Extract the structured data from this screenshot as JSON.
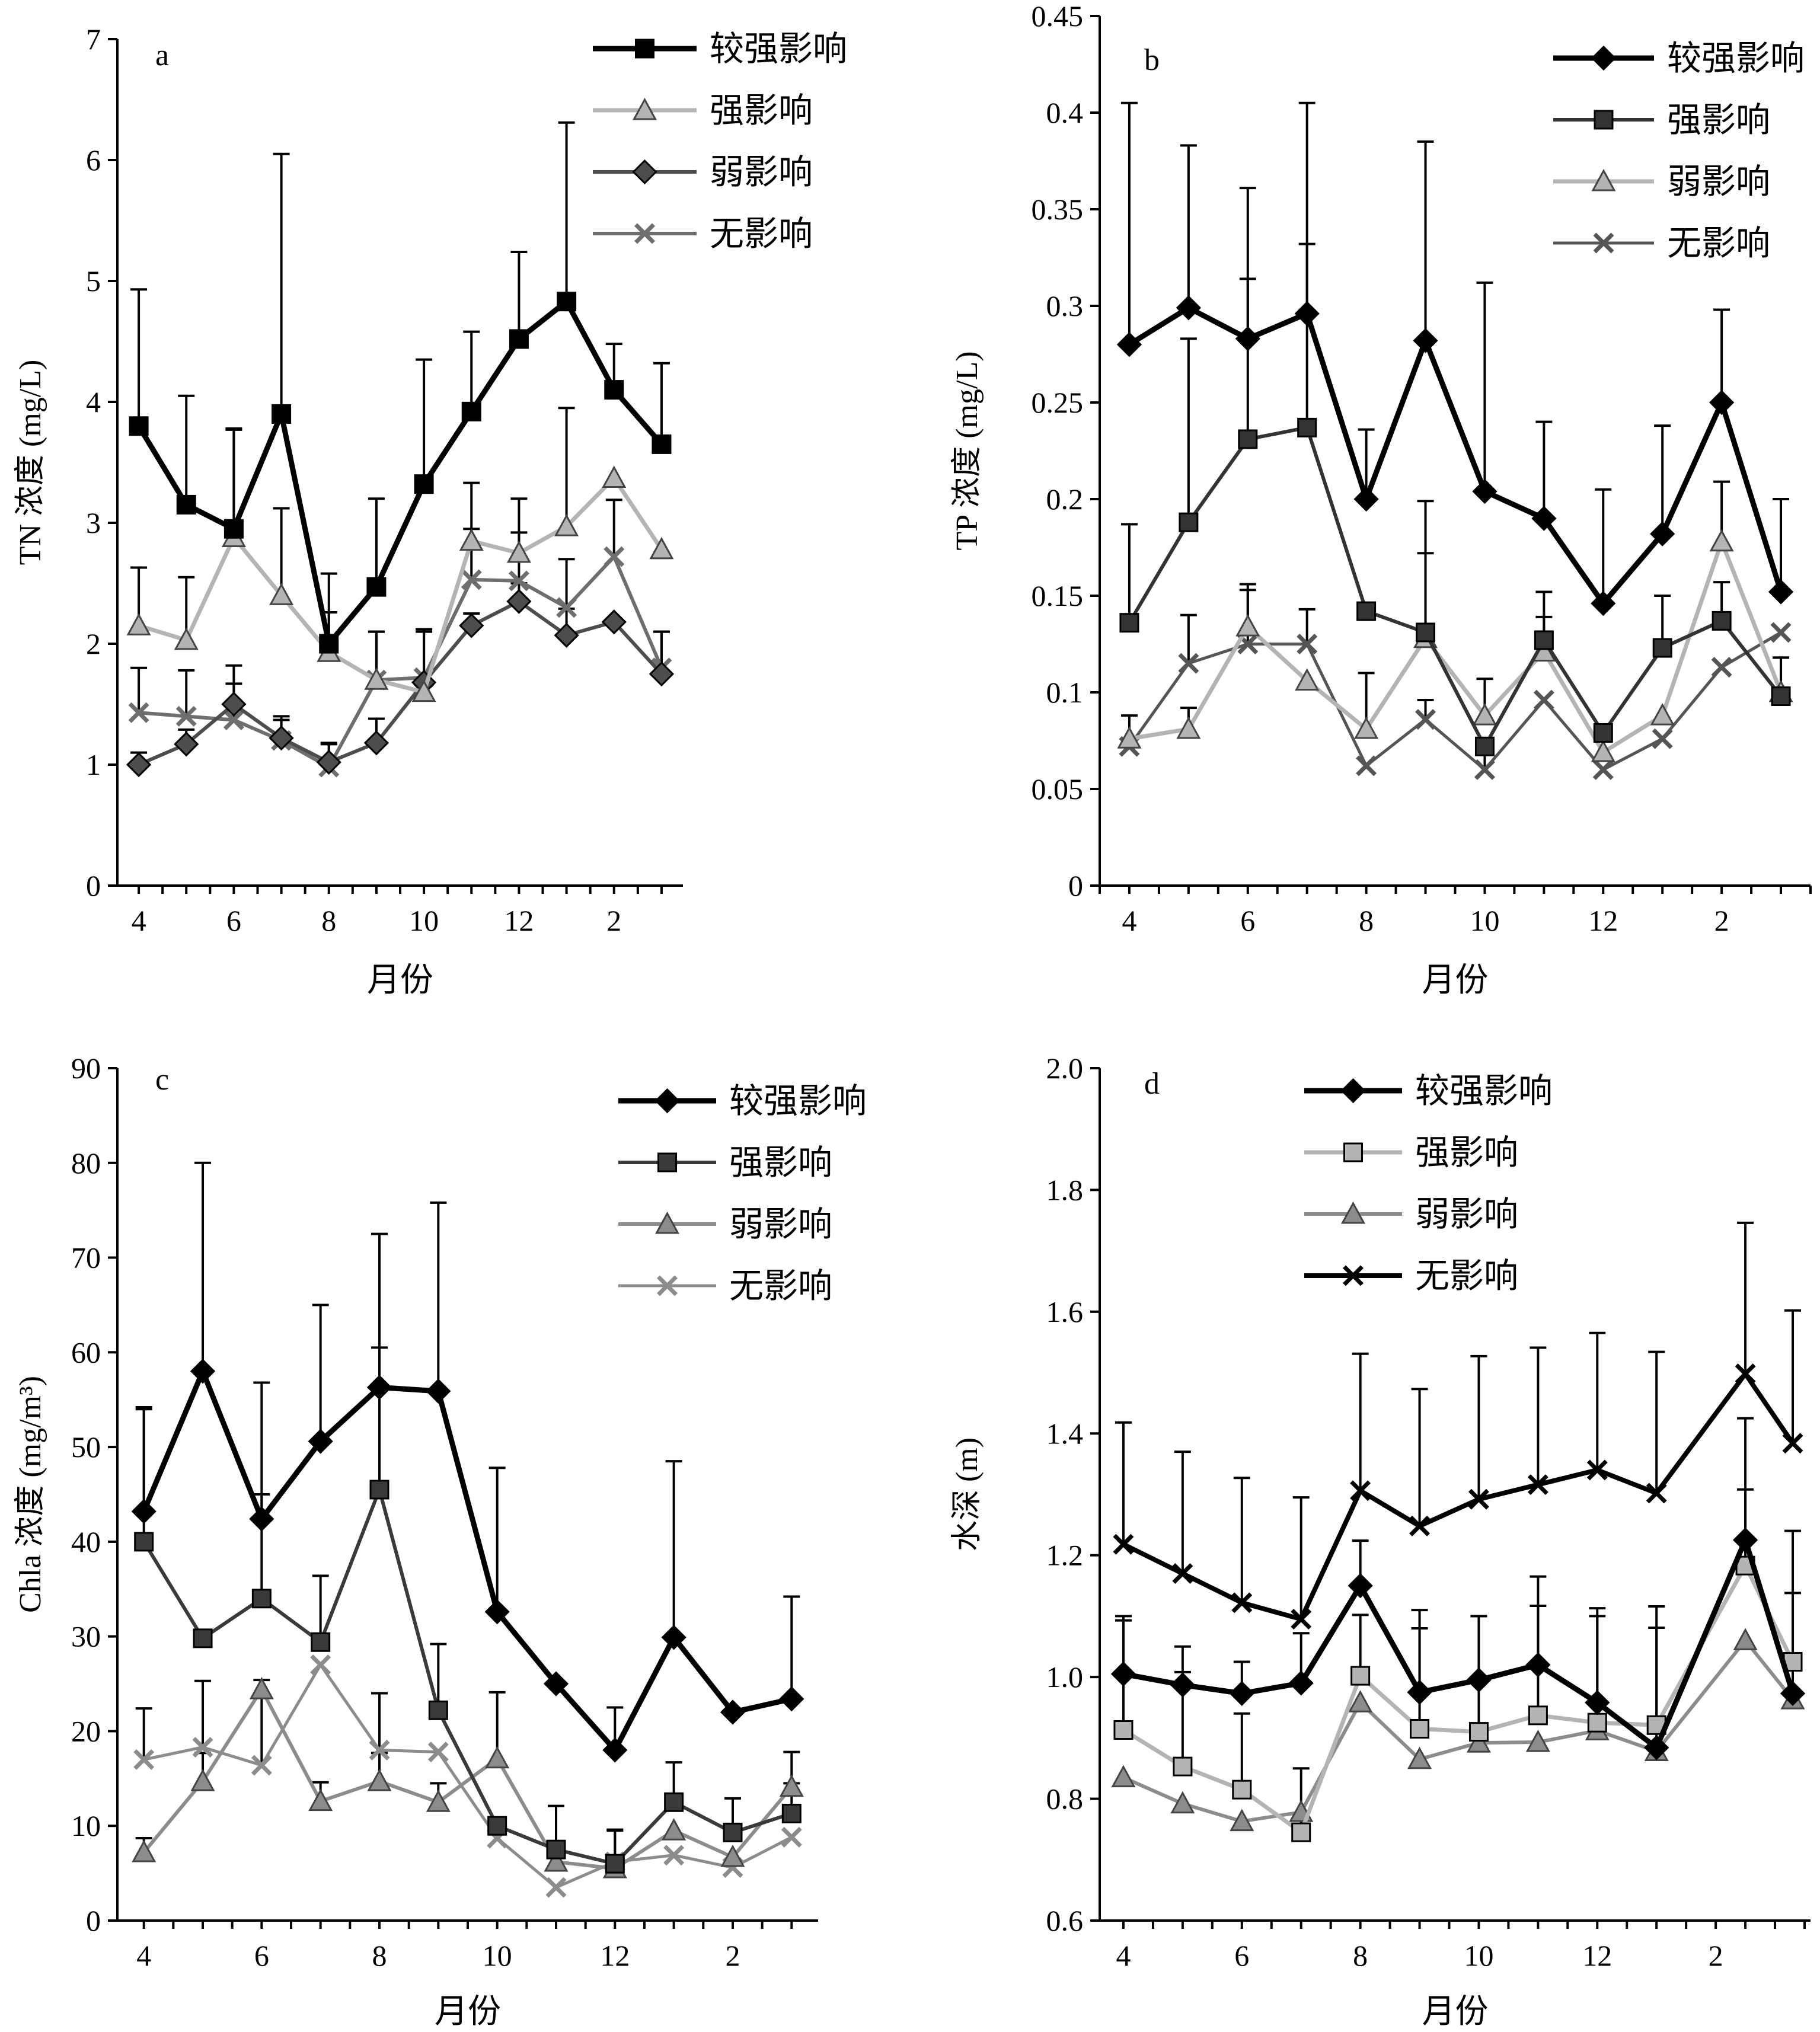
{
  "chart_data": [
    {
      "type": "line",
      "panel_label": "a",
      "ylabel": "TN 浓度 (mg/L)",
      "xlabel": "月份",
      "ylim": [
        0,
        7
      ],
      "yticks": [
        "0",
        "1",
        "2",
        "3",
        "4",
        "5",
        "6",
        "7"
      ],
      "xticks": [
        "4",
        "6",
        "8",
        "10",
        "12",
        "2"
      ],
      "x": [
        4,
        5,
        6,
        7,
        8,
        9,
        10,
        11,
        12,
        13,
        14,
        15
      ],
      "series": [
        {
          "name": "较强影响",
          "marker": "square",
          "color": "#000000",
          "width": 9,
          "values": [
            3.8,
            3.15,
            2.95,
            3.9,
            2.0,
            2.47,
            3.32,
            3.92,
            4.52,
            4.83,
            4.1,
            3.65
          ],
          "err": [
            1.13,
            0.9,
            0.82,
            2.15,
            0.58,
            0.73,
            1.03,
            0.66,
            0.72,
            1.48,
            0.38,
            0.67
          ]
        },
        {
          "name": "强影响",
          "marker": "triangle",
          "color": "#b4b4b4",
          "width": 7,
          "values": [
            2.15,
            2.03,
            2.88,
            2.4,
            1.93,
            1.7,
            1.6,
            2.85,
            2.75,
            2.97,
            3.37,
            2.78
          ],
          "err": [
            0.48,
            0.52,
            0.9,
            0.72,
            0.33,
            0.4,
            0.52,
            0.48,
            0.45,
            0.98,
            0.0,
            0.0
          ]
        },
        {
          "name": "弱影响",
          "marker": "diamond",
          "color": "#4d4d4d",
          "width": 6,
          "values": [
            1.0,
            1.17,
            1.5,
            1.22,
            1.02,
            1.18,
            1.68,
            2.15,
            2.35,
            2.07,
            2.18,
            1.75
          ],
          "err": [
            0.1,
            0.12,
            0.32,
            0.15,
            0.15,
            0.2,
            0.42,
            0.1,
            0.15,
            0.22,
            0.0,
            0.35
          ]
        },
        {
          "name": "无影响",
          "marker": "x",
          "color": "#6e6e6e",
          "width": 6,
          "values": [
            1.43,
            1.4,
            1.37,
            1.2,
            0.98,
            1.7,
            1.72,
            2.53,
            2.52,
            2.3,
            2.72,
            1.8
          ],
          "err": [
            0.37,
            0.38,
            0.3,
            0.2,
            0.2,
            0.4,
            0.4,
            0.42,
            0.4,
            0.4,
            0.47,
            0.3
          ]
        }
      ]
    },
    {
      "type": "line",
      "panel_label": "b",
      "ylabel": "TP 浓度 (mg/L)",
      "xlabel": "月份",
      "ylim": [
        0,
        0.45
      ],
      "yticks": [
        "0",
        "0.05",
        "0.1",
        "0.15",
        "0.2",
        "0.25",
        "0.3",
        "0.35",
        "0.4",
        "0.45"
      ],
      "xticks": [
        "4",
        "6",
        "8",
        "10",
        "12",
        "2"
      ],
      "x": [
        4,
        5,
        6,
        7,
        8,
        9,
        10,
        11,
        12,
        13,
        14,
        15
      ],
      "series": [
        {
          "name": "较强影响",
          "marker": "diamond",
          "color": "#000000",
          "width": 9,
          "values": [
            0.28,
            0.299,
            0.283,
            0.296,
            0.2,
            0.282,
            0.204,
            0.19,
            0.146,
            0.182,
            0.25,
            0.152
          ],
          "err": [
            0.125,
            0.084,
            0.078,
            0.109,
            0.036,
            0.103,
            0.108,
            0.05,
            0.059,
            0.056,
            0.048,
            0.048
          ]
        },
        {
          "name": "强影响",
          "marker": "square",
          "color": "#333333",
          "width": 6,
          "values": [
            0.136,
            0.188,
            0.231,
            0.237,
            0.142,
            0.131,
            0.072,
            0.127,
            0.079,
            0.123,
            0.137,
            0.098
          ],
          "err": [
            0.051,
            0.095,
            0.083,
            0.095,
            0.0,
            0.068,
            0.0,
            0.025,
            0.0,
            0.027,
            0.02,
            0.02
          ]
        },
        {
          "name": "弱影响",
          "marker": "triangle",
          "color": "#b4b4b4",
          "width": 7,
          "values": [
            0.076,
            0.081,
            0.134,
            0.106,
            0.081,
            0.128,
            0.088,
            0.121,
            0.069,
            0.088,
            0.178,
            0.1
          ],
          "err": [
            0.0,
            0.011,
            0.022,
            0.0,
            0.029,
            0.044,
            0.019,
            0.018,
            0.0,
            0.0,
            0.031,
            0.018
          ]
        },
        {
          "name": "无影响",
          "marker": "x",
          "color": "#555555",
          "width": 5,
          "values": [
            0.072,
            0.115,
            0.125,
            0.125,
            0.062,
            0.086,
            0.06,
            0.096,
            0.06,
            0.076,
            0.113,
            0.131
          ],
          "err": [
            0.016,
            0.025,
            0.028,
            0.018,
            0.0,
            0.01,
            0.012,
            0.0,
            0.0,
            0.0,
            0.0,
            0.0
          ]
        }
      ]
    },
    {
      "type": "line",
      "panel_label": "c",
      "ylabel": "Chla 浓度 (mg/m³)",
      "xlabel": "月份",
      "ylim": [
        0,
        90
      ],
      "yticks": [
        "0",
        "10",
        "20",
        "30",
        "40",
        "50",
        "60",
        "70",
        "80",
        "90"
      ],
      "xticks": [
        "4",
        "6",
        "8",
        "10",
        "12",
        "2"
      ],
      "x": [
        4,
        5,
        6,
        7,
        8,
        9,
        10,
        11,
        12,
        13,
        14,
        15
      ],
      "series": [
        {
          "name": "较强影响",
          "marker": "diamond",
          "color": "#000000",
          "width": 9,
          "values": [
            43.2,
            58.0,
            42.4,
            50.6,
            56.3,
            55.9,
            32.6,
            25.0,
            18.0,
            29.9,
            22.0,
            23.4
          ],
          "err": [
            11.0,
            22.0,
            14.4,
            14.4,
            16.2,
            19.9,
            15.2,
            0.0,
            4.5,
            18.6,
            0.0,
            10.8
          ]
        },
        {
          "name": "强影响",
          "marker": "square",
          "color": "#3a3a3a",
          "width": 6,
          "values": [
            40.0,
            29.8,
            34.0,
            29.4,
            45.5,
            22.2,
            10.0,
            7.5,
            6.0,
            12.5,
            9.3,
            11.3
          ],
          "err": [
            14.0,
            0.0,
            11.0,
            7.0,
            15.0,
            7.0,
            0.0,
            4.6,
            3.6,
            4.2,
            3.6,
            3.2
          ]
        },
        {
          "name": "弱影响",
          "marker": "triangle",
          "color": "#8c8c8c",
          "width": 6,
          "values": [
            7.2,
            14.7,
            24.4,
            12.6,
            14.7,
            12.5,
            17.1,
            6.2,
            5.5,
            9.5,
            6.7,
            14.1
          ],
          "err": [
            1.5,
            3.0,
            0.0,
            2.0,
            3.0,
            2.0,
            7.0,
            0.0,
            0.0,
            0.0,
            0.0,
            3.7
          ]
        },
        {
          "name": "无影响",
          "marker": "x",
          "color": "#8c8c8c",
          "width": 5,
          "values": [
            17.0,
            18.3,
            16.4,
            27.0,
            18.0,
            17.8,
            8.7,
            3.5,
            6.2,
            6.9,
            5.6,
            8.8
          ],
          "err": [
            5.4,
            7.0,
            9.0,
            0.0,
            6.0,
            0.0,
            0.0,
            0.0,
            3.3,
            0.0,
            0.0,
            0.0
          ]
        }
      ]
    },
    {
      "type": "line",
      "panel_label": "d",
      "ylabel": "水深 (m)",
      "xlabel": "月份",
      "ylim": [
        0.6,
        2.0
      ],
      "yticks": [
        "0.6",
        "0.8",
        "1.0",
        "1.2",
        "1.4",
        "1.6",
        "1.8",
        "2.0"
      ],
      "xticks": [
        "4",
        "6",
        "8",
        "10",
        "12",
        "2"
      ],
      "x": [
        4,
        5,
        6,
        7,
        8,
        9,
        10,
        11,
        12,
        13,
        14.5,
        15.3
      ],
      "series": [
        {
          "name": "较强影响",
          "marker": "diamond",
          "color": "#000000",
          "width": 9,
          "values": [
            1.005,
            0.987,
            0.973,
            0.99,
            1.15,
            0.975,
            0.995,
            1.02,
            0.958,
            0.884,
            1.225,
            0.973
          ],
          "err": [
            0.095,
            0.063,
            0.052,
            0.082,
            0.074,
            0.105,
            0.105,
            0.145,
            0.155,
            0.232,
            0.2,
            0.165
          ]
        },
        {
          "name": "强影响",
          "marker": "square",
          "color": "#b4b4b4",
          "width": 7,
          "values": [
            0.913,
            0.853,
            0.815,
            0.745,
            1.002,
            0.915,
            0.91,
            0.937,
            0.925,
            0.921,
            1.183,
            1.025
          ],
          "err": [
            0.18,
            0.155,
            0.125,
            0.105,
            0.1,
            0.195,
            0.19,
            0.18,
            0.175,
            0.16,
            0.125,
            0.215
          ]
        },
        {
          "name": "弱影响",
          "marker": "triangle",
          "color": "#8c8c8c",
          "width": 6,
          "values": [
            0.835,
            0.792,
            0.763,
            0.778,
            0.958,
            0.865,
            0.892,
            0.893,
            0.912,
            0.878,
            1.06,
            0.963
          ],
          "err": [
            0.0,
            0.0,
            0.0,
            0.0,
            0.0,
            0.0,
            0.0,
            0.0,
            0.0,
            0.0,
            0.0,
            0.0
          ]
        },
        {
          "name": "无影响",
          "marker": "x",
          "color": "#000000",
          "width": 8,
          "values": [
            1.218,
            1.17,
            1.122,
            1.095,
            1.306,
            1.248,
            1.292,
            1.316,
            1.34,
            1.302,
            1.498,
            1.384
          ],
          "err": [
            0.2,
            0.2,
            0.205,
            0.2,
            0.225,
            0.225,
            0.235,
            0.225,
            0.225,
            0.232,
            0.248,
            0.218
          ]
        }
      ]
    }
  ]
}
